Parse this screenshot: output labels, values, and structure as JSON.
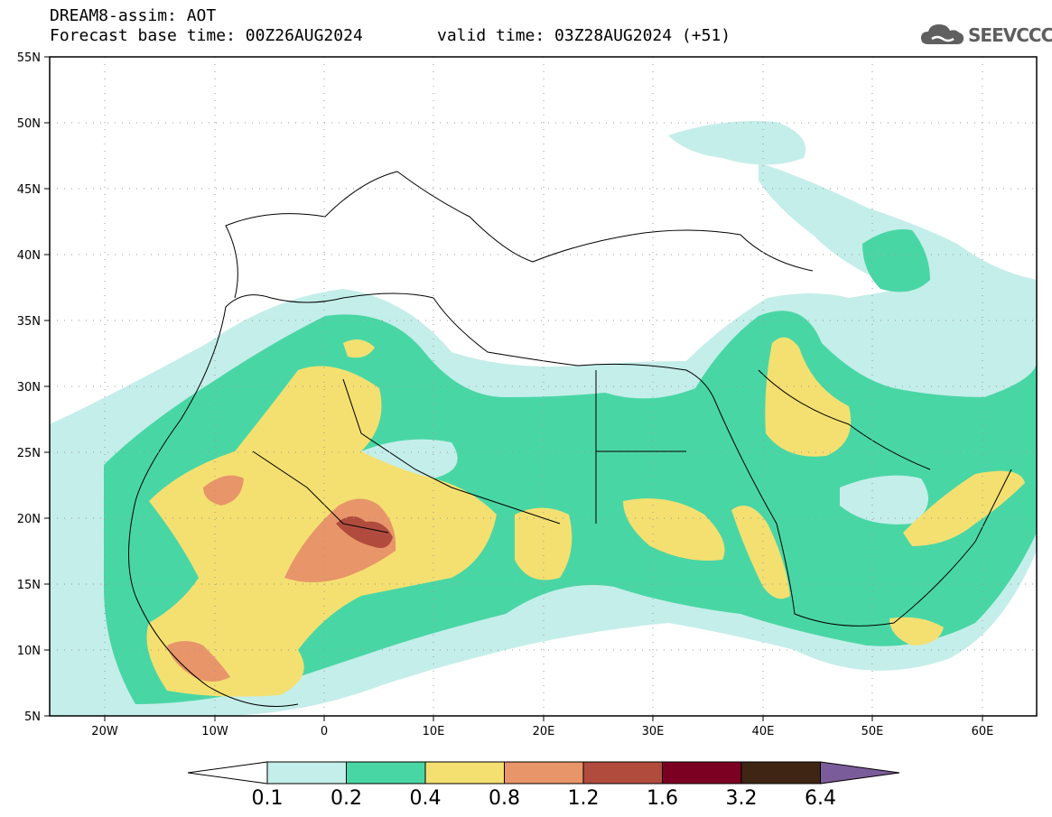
{
  "header": {
    "title_line1": "DREAM8-assim: AOT",
    "title_line2": "Forecast base time: 00Z26AUG2024",
    "valid_time": "valid time: 03Z28AUG2024 (+51)",
    "logo_text": "SEEVCCC"
  },
  "map": {
    "lat_labels": [
      "55N",
      "50N",
      "45N",
      "40N",
      "35N",
      "30N",
      "25N",
      "20N",
      "15N",
      "10N",
      "5N"
    ],
    "lon_labels": [
      "20W",
      "10W",
      "0",
      "10E",
      "20E",
      "30E",
      "40E",
      "50E",
      "60E"
    ],
    "extent": {
      "lon_min": -25,
      "lon_max": 65,
      "lat_min": 5,
      "lat_max": 55
    }
  },
  "colorbar": {
    "labels": [
      "0.1",
      "0.2",
      "0.4",
      "0.8",
      "1.2",
      "1.6",
      "3.2",
      "6.4"
    ],
    "colors": [
      "#ffffff",
      "#c4eee9",
      "#49d6a5",
      "#f4e071",
      "#e8956a",
      "#b14b3e",
      "#7c0021",
      "#3f2614",
      "#7b5c9a"
    ]
  }
}
